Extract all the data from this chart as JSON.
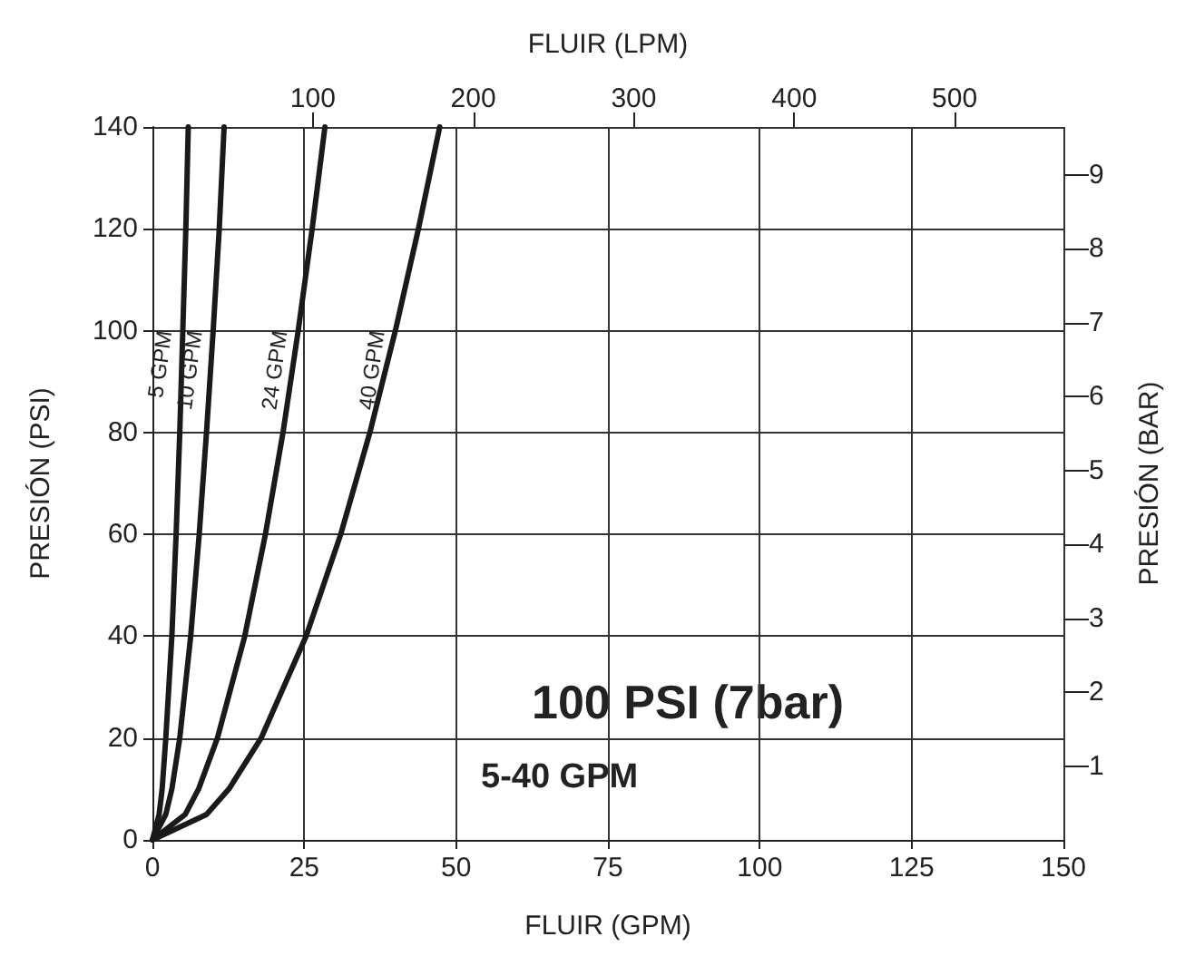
{
  "chart_data": {
    "type": "line",
    "xlabel": "FLUIR (GPM)",
    "ylabel": "PRESIÓN (PSI)",
    "x2label": "FLUIR (LPM)",
    "y2label": "PRESIÓN (BAR)",
    "xlim": [
      0,
      150
    ],
    "xticks": [
      0,
      25,
      50,
      75,
      100,
      125,
      150
    ],
    "ylim": [
      0,
      140
    ],
    "yticks": [
      0,
      20,
      40,
      60,
      80,
      100,
      120,
      140
    ],
    "x2lim": [
      0,
      567.8
    ],
    "x2ticks": [
      100,
      200,
      300,
      400,
      500
    ],
    "y2lim": [
      0,
      9.65
    ],
    "y2ticks": [
      1,
      2,
      3,
      4,
      5,
      6,
      7,
      8,
      9
    ],
    "grid": true,
    "marker": "none",
    "line_style": "solid",
    "series": [
      {
        "name": "5 GPM",
        "color": "#1a1a1a",
        "x": [
          0,
          1.1,
          1.6,
          2.2,
          3.2,
          3.9,
          4.5,
          5,
          5.5,
          5.9
        ],
        "values": [
          0,
          5,
          10,
          20,
          40,
          60,
          80,
          100,
          120,
          140
        ]
      },
      {
        "name": "10 GPM",
        "color": "#1a1a1a",
        "x": [
          0,
          2.2,
          3.2,
          4.5,
          6.3,
          7.7,
          8.9,
          10,
          11,
          11.8
        ],
        "values": [
          0,
          5,
          10,
          20,
          40,
          60,
          80,
          100,
          120,
          140
        ]
      },
      {
        "name": "24 GPM",
        "color": "#1a1a1a",
        "x": [
          0,
          5.4,
          7.6,
          10.7,
          15.2,
          18.6,
          21.5,
          24,
          26.3,
          28.4
        ],
        "values": [
          0,
          5,
          10,
          20,
          40,
          60,
          80,
          100,
          120,
          140
        ]
      },
      {
        "name": "40 GPM",
        "color": "#1a1a1a",
        "x": [
          0,
          8.9,
          12.6,
          17.9,
          25.3,
          31,
          35.8,
          40,
          43.8,
          47.3
        ],
        "values": [
          0,
          5,
          10,
          20,
          40,
          60,
          80,
          100,
          120,
          140
        ]
      }
    ],
    "annotations": [
      "100 PSI (7bar)",
      "5-40 GPM"
    ]
  }
}
